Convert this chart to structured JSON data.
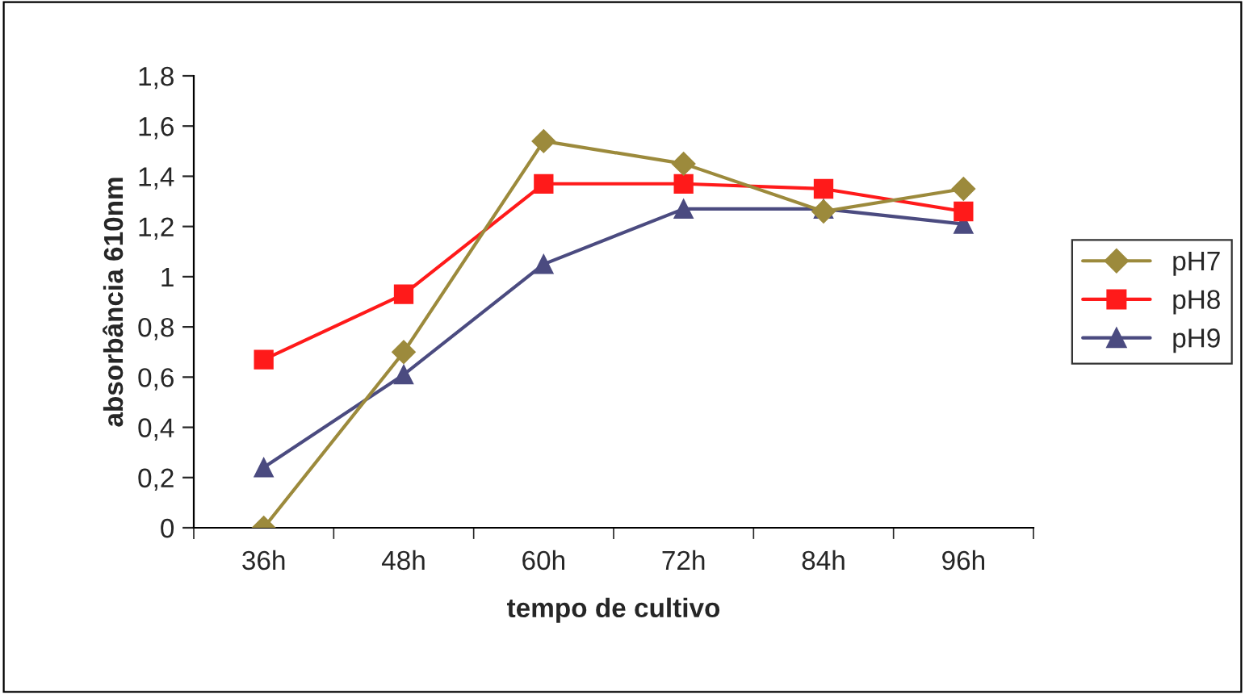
{
  "chart_data": {
    "type": "line",
    "xlabel": "tempo de cultivo",
    "ylabel": "absorbância 610nm",
    "categories": [
      "36h",
      "48h",
      "60h",
      "72h",
      "84h",
      "96h"
    ],
    "series": [
      {
        "name": "pH7",
        "color": "#9c8a3c",
        "marker": "diamond",
        "values": [
          0,
          0.7,
          1.54,
          1.45,
          1.26,
          1.35
        ]
      },
      {
        "name": "pH8",
        "color": "#ff1a1a",
        "marker": "square",
        "values": [
          0.67,
          0.93,
          1.37,
          1.37,
          1.35,
          1.26
        ]
      },
      {
        "name": "pH9",
        "color": "#4b4b80",
        "marker": "triangle",
        "values": [
          0.24,
          0.61,
          1.05,
          1.27,
          1.27,
          1.21
        ]
      }
    ],
    "ylim": [
      0,
      1.8
    ],
    "yticks": [
      {
        "value": 0,
        "label": "0"
      },
      {
        "value": 0.2,
        "label": "0,2"
      },
      {
        "value": 0.4,
        "label": "0,4"
      },
      {
        "value": 0.6,
        "label": "0,6"
      },
      {
        "value": 0.8,
        "label": "0,8"
      },
      {
        "value": 1,
        "label": "1"
      },
      {
        "value": 1.2,
        "label": "1,2"
      },
      {
        "value": 1.4,
        "label": "1,4"
      },
      {
        "value": 1.6,
        "label": "1,6"
      },
      {
        "value": 1.8,
        "label": "1,8"
      }
    ],
    "grid": false,
    "legend": "right",
    "line_style": "solid"
  }
}
